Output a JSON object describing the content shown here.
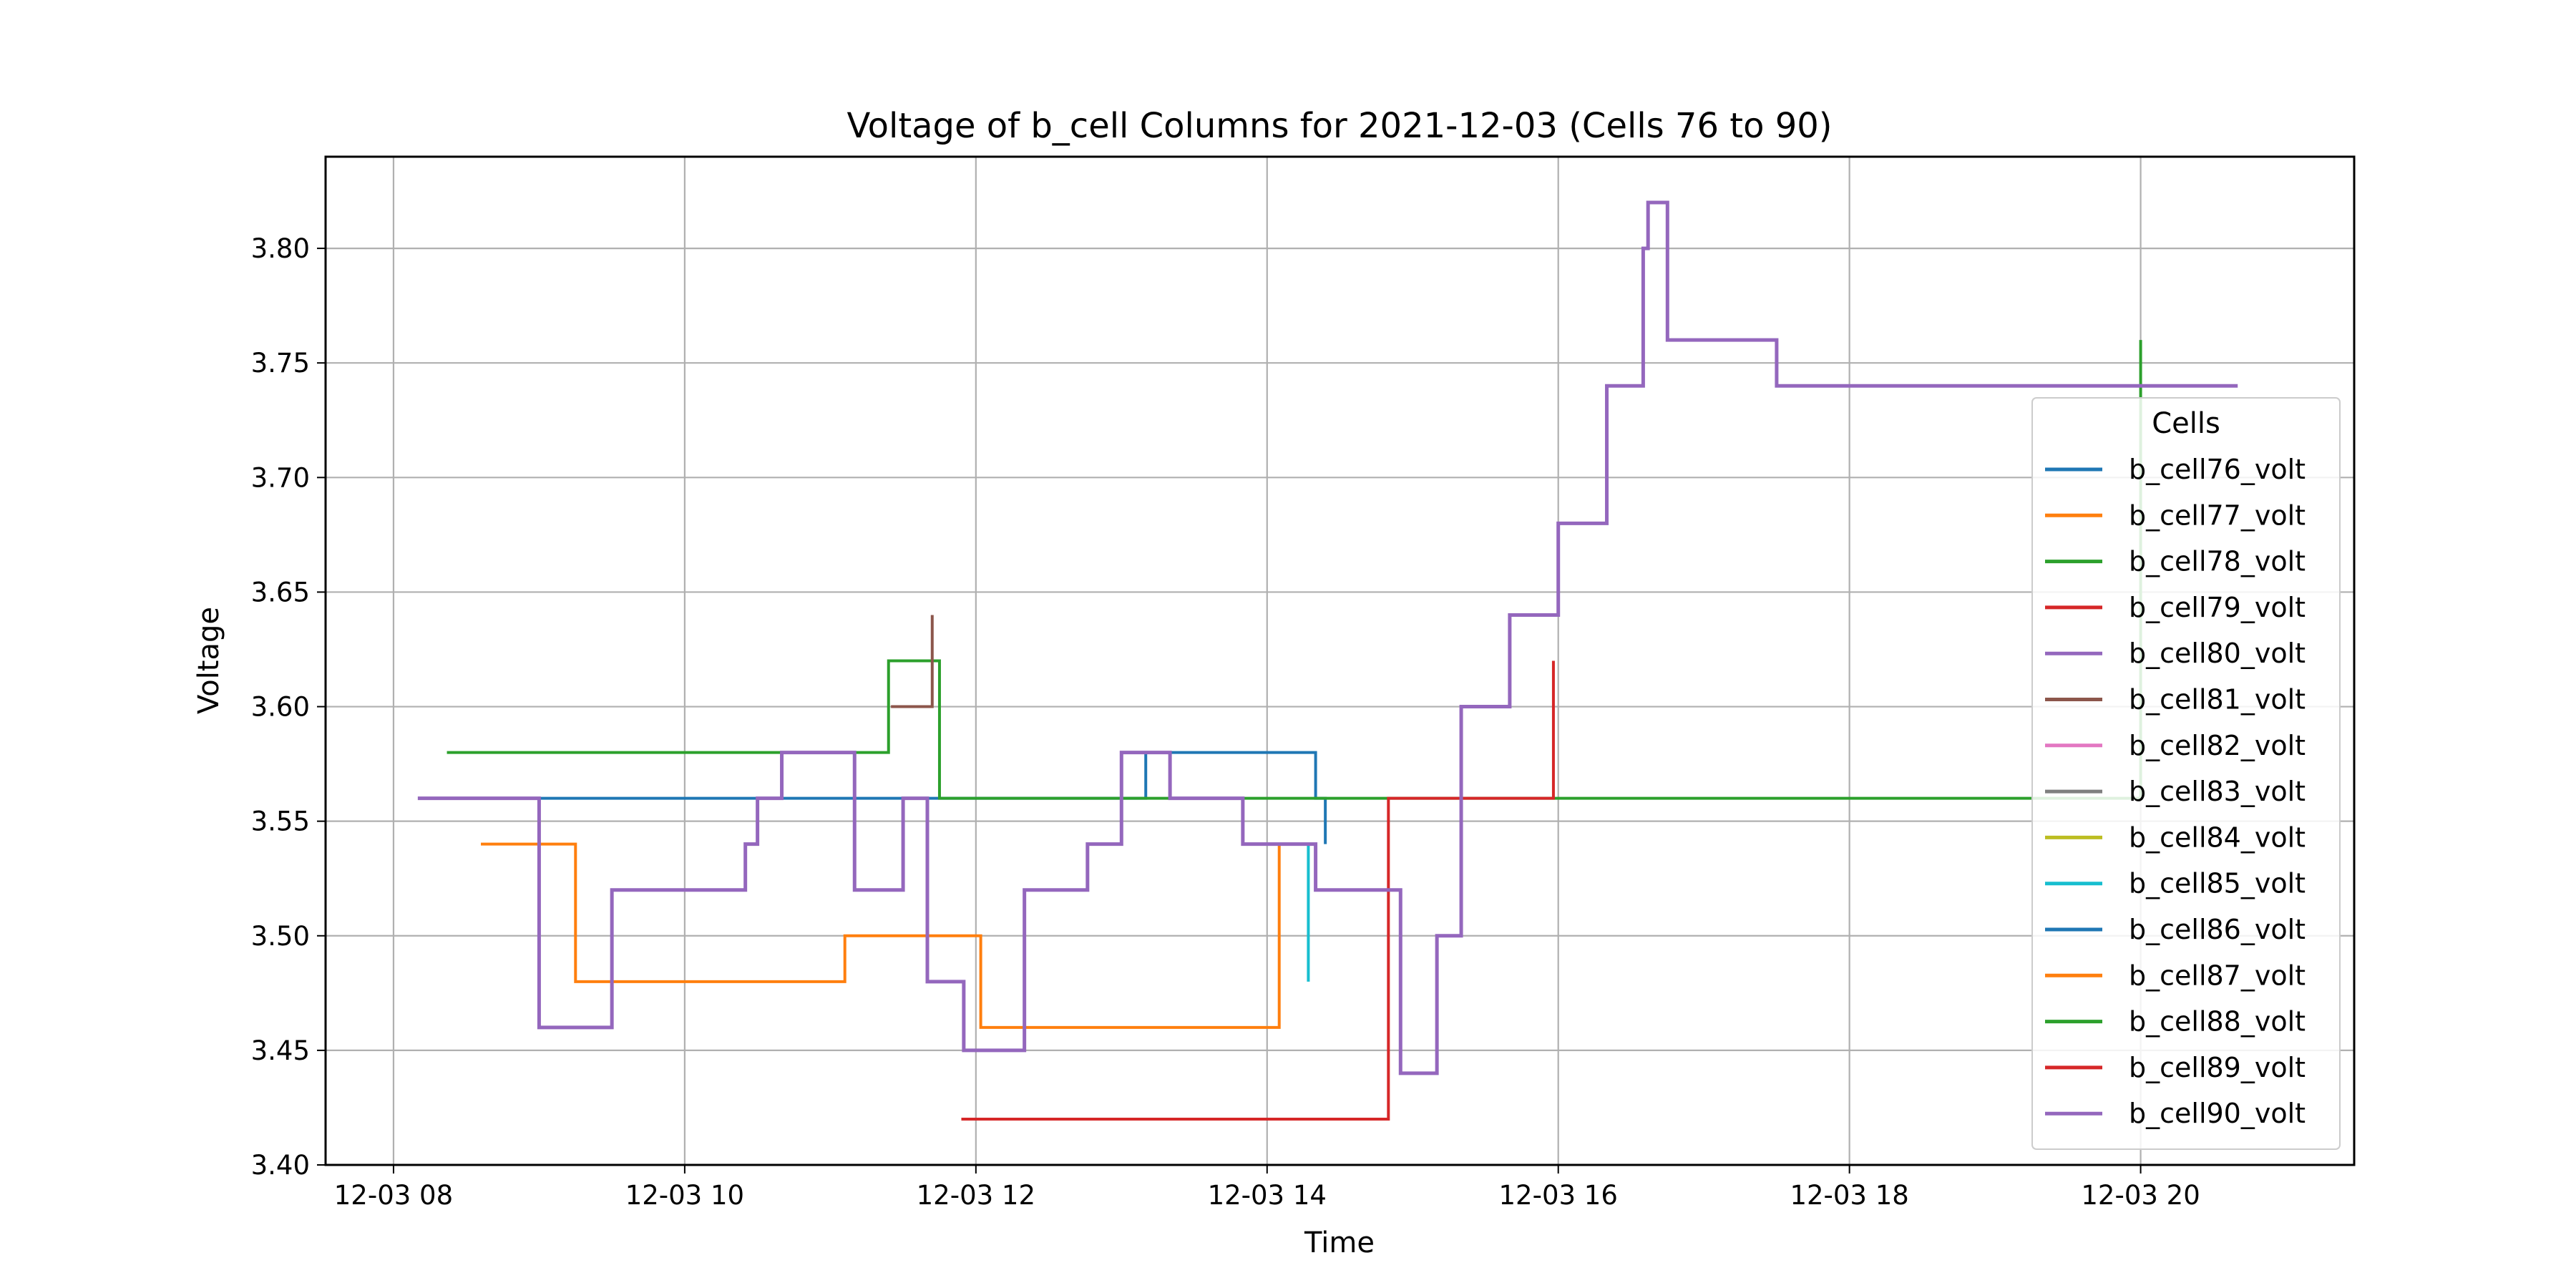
{
  "chart_data": {
    "type": "line",
    "title": "Voltage of b_cell Columns for 2021-12-03 (Cells 76 to 90)",
    "xlabel": "Time",
    "ylabel": "Voltage",
    "x_ticks": [
      "12-03 08",
      "12-03 10",
      "12-03 12",
      "12-03 14",
      "12-03 16",
      "12-03 18",
      "12-03 20"
    ],
    "y_ticks": [
      "3.40",
      "3.45",
      "3.50",
      "3.55",
      "3.60",
      "3.65",
      "3.70",
      "3.75",
      "3.80"
    ],
    "xlim": [
      "2021-12-03 07:32",
      "2021-12-03 21:28"
    ],
    "ylim": [
      3.4,
      3.84
    ],
    "grid": true,
    "legend": {
      "title": "Cells",
      "placement": "right"
    },
    "series": [
      {
        "name": "b_cell76_volt",
        "color": "#1f77b4",
        "points": [
          [
            "08:20",
            3.56
          ],
          [
            "13:10",
            3.58
          ],
          [
            "14:20",
            3.56
          ],
          [
            "14:24",
            3.54
          ]
        ]
      },
      {
        "name": "b_cell77_volt",
        "color": "#ff7f0e",
        "points": [
          [
            "08:36",
            3.54
          ],
          [
            "09:15",
            3.48
          ],
          [
            "11:06",
            3.5
          ],
          [
            "12:02",
            3.46
          ],
          [
            "14:05",
            3.54
          ]
        ]
      },
      {
        "name": "b_cell78_volt",
        "color": "#2ca02c",
        "points": [
          [
            "08:22",
            3.58
          ],
          [
            "11:24",
            3.62
          ],
          [
            "11:45",
            3.56
          ],
          [
            "13:45",
            3.56
          ],
          [
            "20:00",
            3.76
          ]
        ]
      },
      {
        "name": "b_cell79_volt",
        "color": "#d62728",
        "points": [
          [
            "11:54",
            3.42
          ],
          [
            "14:50",
            3.56
          ],
          [
            "14:56",
            3.56
          ],
          [
            "15:58",
            3.62
          ]
        ]
      },
      {
        "name": "b_cell80_volt",
        "color": "#9467bd",
        "points": [
          [
            "08:10",
            3.56
          ],
          [
            "08:30",
            3.56
          ],
          [
            "09:00",
            3.46
          ],
          [
            "09:30",
            3.52
          ],
          [
            "10:16",
            3.52
          ],
          [
            "10:25",
            3.54
          ],
          [
            "10:30",
            3.56
          ],
          [
            "10:40",
            3.58
          ],
          [
            "11:00",
            3.58
          ],
          [
            "11:10",
            3.52
          ],
          [
            "11:30",
            3.56
          ],
          [
            "11:40",
            3.48
          ],
          [
            "11:55",
            3.45
          ],
          [
            "12:20",
            3.52
          ],
          [
            "12:46",
            3.54
          ],
          [
            "13:00",
            3.58
          ],
          [
            "13:20",
            3.56
          ],
          [
            "13:50",
            3.54
          ],
          [
            "14:20",
            3.52
          ],
          [
            "14:40",
            3.52
          ],
          [
            "14:55",
            3.44
          ],
          [
            "15:10",
            3.5
          ],
          [
            "15:20",
            3.6
          ],
          [
            "15:40",
            3.64
          ],
          [
            "16:00",
            3.68
          ],
          [
            "16:20",
            3.74
          ],
          [
            "16:35",
            3.8
          ],
          [
            "16:37",
            3.82
          ],
          [
            "16:45",
            3.76
          ],
          [
            "17:20",
            3.76
          ],
          [
            "17:30",
            3.74
          ],
          [
            "20:40",
            3.74
          ]
        ]
      },
      {
        "name": "b_cell81_volt",
        "color": "#8c564b",
        "points": [
          [
            "11:25",
            3.6
          ],
          [
            "11:42",
            3.64
          ]
        ]
      },
      {
        "name": "b_cell82_volt",
        "color": "#e377c2",
        "points": []
      },
      {
        "name": "b_cell83_volt",
        "color": "#7f7f7f",
        "points": []
      },
      {
        "name": "b_cell84_volt",
        "color": "#bcbd22",
        "points": []
      },
      {
        "name": "b_cell85_volt",
        "color": "#17becf",
        "points": [
          [
            "13:50",
            3.54
          ],
          [
            "14:17",
            3.48
          ]
        ]
      },
      {
        "name": "b_cell86_volt",
        "color": "#1f77b4",
        "points": []
      },
      {
        "name": "b_cell87_volt",
        "color": "#ff7f0e",
        "points": []
      },
      {
        "name": "b_cell88_volt",
        "color": "#2ca02c",
        "points": []
      },
      {
        "name": "b_cell89_volt",
        "color": "#d62728",
        "points": []
      },
      {
        "name": "b_cell90_volt",
        "color": "#9467bd",
        "points": []
      }
    ]
  }
}
